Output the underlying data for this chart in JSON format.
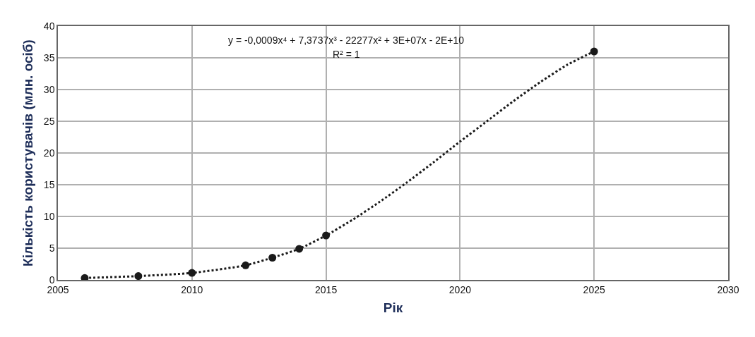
{
  "chart_data": {
    "type": "scatter",
    "xlabel": "Рік",
    "ylabel": "Кількість користувачів (млн. осіб)",
    "annotations": [
      "y = -0,0009x⁴ + 7,3737x³ - 22277x² + 3E+07x - 2E+10",
      "R² = 1"
    ],
    "x": [
      2006,
      2008,
      2010,
      2012,
      2013,
      2014,
      2015,
      2025
    ],
    "series": [
      {
        "type": "scatter",
        "color": "#1a1a1a",
        "marker": "circle",
        "values": [
          0.3,
          0.6,
          1.1,
          2.3,
          3.5,
          4.9,
          7.0,
          36.0
        ]
      },
      {
        "type": "line",
        "color": "#1a1a1a",
        "marker": "none",
        "line_style": "dotted",
        "x": [
          2006,
          2008,
          2010,
          2012,
          2013,
          2014,
          2015,
          2016,
          2017,
          2018,
          2019,
          2020,
          2021,
          2022,
          2023,
          2024,
          2025
        ],
        "values": [
          0.3,
          0.6,
          1.1,
          2.3,
          3.5,
          4.9,
          7.0,
          9.5,
          12.3,
          15.3,
          18.5,
          21.8,
          25.0,
          28.2,
          31.2,
          33.9,
          36.0
        ]
      }
    ],
    "xlim": [
      2005,
      2030
    ],
    "xticks": [
      2005,
      2010,
      2015,
      2020,
      2025,
      2030
    ],
    "ylim": [
      0,
      40
    ],
    "yticks": [
      0,
      5,
      10,
      15,
      20,
      25,
      30,
      35,
      40
    ],
    "grid": true
  }
}
